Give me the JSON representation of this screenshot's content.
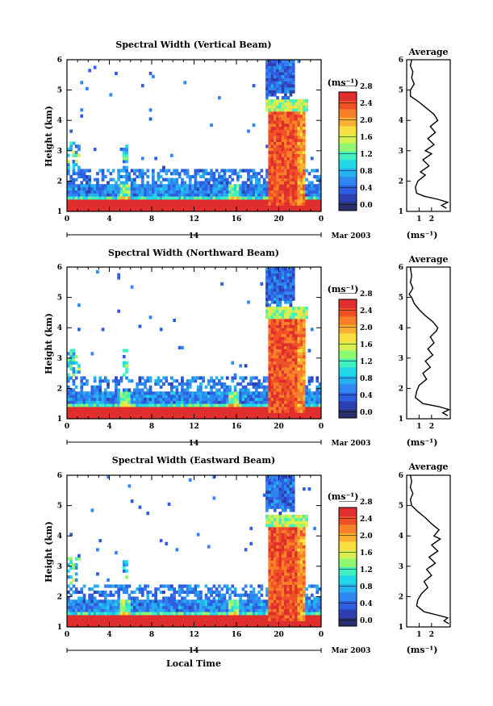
{
  "common": {
    "x_label": "Local Time",
    "y_label": "Height (km)",
    "date_label": "Mar 2003",
    "day_label": "14",
    "x_ticks": [
      "0",
      "4",
      "8",
      "12",
      "16",
      "20",
      "0"
    ],
    "y_ticks": [
      "1",
      "2",
      "3",
      "4",
      "5",
      "6"
    ],
    "colorbar_unit": "(ms⁻¹)",
    "colorbar_ticks": [
      "0.0",
      "0.4",
      "0.8",
      "1.2",
      "1.6",
      "2.0",
      "2.4",
      "2.8"
    ],
    "profile_title": "Average",
    "profile_x_ticks": [
      "1",
      "2"
    ],
    "profile_x_unit": "(ms⁻¹)",
    "colors": [
      "#2a2f6e",
      "#2e3fb0",
      "#2f5fe0",
      "#2f86f0",
      "#25b0f0",
      "#20d8e8",
      "#40f0c0",
      "#90f870",
      "#d8f050",
      "#f8e040",
      "#f8b030",
      "#f88028",
      "#f05028",
      "#e02e2e"
    ]
  },
  "chart_data": [
    {
      "type": "heatmap",
      "title": "Spectral Width (Vertical Beam)",
      "xlabel": "",
      "ylabel": "Height (km)",
      "xlim": [
        0,
        24
      ],
      "ylim": [
        1,
        6
      ],
      "colorbar_range": [
        0,
        2.8
      ],
      "profile": {
        "title": "Average",
        "xlim": [
          0,
          3.5
        ],
        "heights": [
          1.1,
          1.2,
          1.3,
          1.4,
          1.5,
          1.6,
          1.8,
          2.0,
          2.2,
          2.3,
          2.5,
          2.7,
          2.9,
          3.0,
          3.2,
          3.4,
          3.6,
          3.8,
          4.0,
          4.2,
          4.4,
          4.6,
          4.8,
          5.0,
          5.2,
          5.4,
          5.6,
          5.8,
          6.0
        ],
        "values": [
          3.2,
          2.8,
          3.3,
          2.5,
          1.4,
          0.8,
          0.7,
          0.9,
          1.5,
          1.1,
          1.8,
          1.3,
          2.0,
          1.5,
          2.2,
          1.7,
          2.3,
          1.9,
          2.5,
          2.2,
          1.6,
          1.0,
          0.3,
          0.3,
          0.6,
          0.4,
          0.5,
          0.3,
          0.4
        ]
      }
    },
    {
      "type": "heatmap",
      "title": "Spectral Width (Northward Beam)",
      "xlabel": "",
      "ylabel": "Height (km)",
      "xlim": [
        0,
        24
      ],
      "ylim": [
        1,
        6
      ],
      "colorbar_range": [
        0,
        2.8
      ],
      "profile": {
        "title": "Average",
        "xlim": [
          0,
          3.5
        ],
        "heights": [
          1.1,
          1.2,
          1.3,
          1.4,
          1.5,
          1.7,
          1.9,
          2.1,
          2.3,
          2.5,
          2.7,
          2.9,
          3.1,
          3.3,
          3.5,
          3.7,
          3.9,
          4.0,
          4.2,
          4.4,
          4.6,
          4.8,
          5.0,
          5.1,
          5.3,
          5.5,
          5.7,
          6.0
        ],
        "values": [
          3.3,
          2.9,
          3.4,
          2.6,
          1.3,
          0.7,
          0.8,
          1.0,
          1.6,
          1.3,
          1.9,
          1.5,
          2.1,
          1.7,
          2.2,
          1.9,
          2.4,
          2.5,
          2.1,
          1.5,
          1.0,
          0.6,
          0.4,
          0.2,
          0.5,
          0.3,
          0.4,
          0.3
        ]
      }
    },
    {
      "type": "heatmap",
      "title": "Spectral Width (Eastward Beam)",
      "xlabel": "Local Time",
      "ylabel": "Height (km)",
      "xlim": [
        0,
        24
      ],
      "ylim": [
        1,
        6
      ],
      "colorbar_range": [
        0,
        2.8
      ],
      "profile": {
        "title": "Average",
        "xlim": [
          0,
          3.5
        ],
        "heights": [
          1.1,
          1.2,
          1.3,
          1.4,
          1.5,
          1.7,
          1.9,
          2.1,
          2.3,
          2.5,
          2.7,
          2.9,
          3.1,
          3.3,
          3.5,
          3.7,
          3.9,
          4.0,
          4.2,
          4.4,
          4.6,
          4.8,
          5.0,
          5.2,
          5.4,
          5.6,
          5.8,
          6.0
        ],
        "values": [
          3.4,
          3.0,
          3.3,
          2.4,
          1.4,
          0.8,
          0.9,
          1.2,
          1.7,
          1.4,
          2.0,
          1.6,
          2.3,
          1.8,
          2.5,
          2.0,
          2.7,
          2.2,
          2.6,
          2.0,
          1.5,
          0.9,
          0.4,
          0.3,
          0.5,
          0.3,
          0.4,
          0.3
        ]
      }
    }
  ]
}
